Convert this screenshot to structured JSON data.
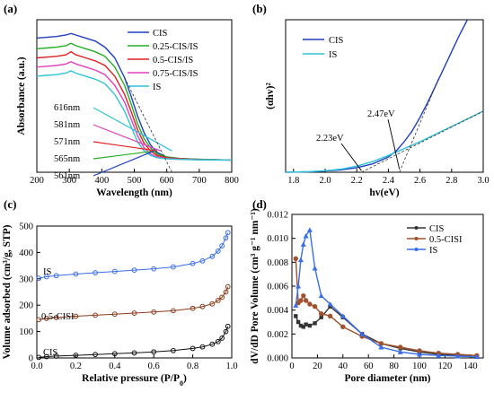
{
  "chart_data": [
    {
      "panel": "(a)",
      "type": "line",
      "xlabel": "Wavelength (nm)",
      "ylabel": "Absorbance (a.u.)",
      "xlim": [
        200,
        800
      ],
      "ylim": [
        0,
        1
      ],
      "xticks": [
        "200",
        "300",
        "400",
        "500",
        "600",
        "700",
        "800"
      ],
      "legend_position": "top-right",
      "series": [
        {
          "name": "CIS",
          "color": "#1f3fbf",
          "x": [
            200,
            230,
            260,
            290,
            305,
            320,
            350,
            380,
            410,
            440,
            470,
            490,
            510,
            530,
            550,
            570,
            600,
            640,
            700,
            800
          ],
          "y": [
            0.88,
            0.885,
            0.89,
            0.9,
            0.91,
            0.9,
            0.88,
            0.86,
            0.82,
            0.75,
            0.62,
            0.5,
            0.37,
            0.26,
            0.18,
            0.13,
            0.1,
            0.09,
            0.085,
            0.08
          ]
        },
        {
          "name": "0.25-CIS/IS",
          "color": "#22b022",
          "x": [
            200,
            230,
            260,
            290,
            305,
            320,
            350,
            380,
            410,
            440,
            470,
            490,
            510,
            530,
            550,
            570,
            600,
            640,
            700,
            800
          ],
          "y": [
            0.81,
            0.815,
            0.82,
            0.83,
            0.845,
            0.83,
            0.81,
            0.79,
            0.76,
            0.69,
            0.57,
            0.45,
            0.32,
            0.22,
            0.16,
            0.12,
            0.1,
            0.09,
            0.085,
            0.08
          ]
        },
        {
          "name": "0.5-CIS/IS",
          "color": "#e02020",
          "x": [
            200,
            230,
            260,
            290,
            305,
            320,
            350,
            380,
            410,
            440,
            470,
            490,
            510,
            530,
            550,
            570,
            600,
            640,
            700,
            800
          ],
          "y": [
            0.75,
            0.755,
            0.76,
            0.77,
            0.79,
            0.77,
            0.75,
            0.73,
            0.7,
            0.63,
            0.51,
            0.4,
            0.28,
            0.19,
            0.14,
            0.11,
            0.095,
            0.088,
            0.083,
            0.08
          ]
        },
        {
          "name": "0.75-CIS/IS",
          "color": "#e040c0",
          "x": [
            200,
            230,
            260,
            290,
            305,
            320,
            350,
            380,
            410,
            440,
            470,
            490,
            510,
            530,
            550,
            570,
            600,
            640,
            700,
            800
          ],
          "y": [
            0.69,
            0.695,
            0.7,
            0.71,
            0.725,
            0.71,
            0.69,
            0.67,
            0.64,
            0.57,
            0.46,
            0.35,
            0.24,
            0.16,
            0.12,
            0.1,
            0.09,
            0.085,
            0.082,
            0.08
          ]
        },
        {
          "name": "IS",
          "color": "#2ec4d8",
          "x": [
            200,
            230,
            260,
            290,
            305,
            320,
            350,
            380,
            410,
            440,
            470,
            490,
            510,
            530,
            550,
            570,
            600,
            640,
            700,
            800
          ],
          "y": [
            0.63,
            0.635,
            0.64,
            0.65,
            0.665,
            0.65,
            0.63,
            0.61,
            0.58,
            0.51,
            0.4,
            0.3,
            0.2,
            0.14,
            0.11,
            0.095,
            0.088,
            0.084,
            0.081,
            0.08
          ]
        }
      ],
      "annotations": [
        "616nm",
        "581nm",
        "571nm",
        "565nm",
        "561nm"
      ]
    },
    {
      "panel": "(b)",
      "type": "line",
      "xlabel": "hv(eV)",
      "ylabel": "(αhv)²",
      "xlim": [
        1.75,
        3.0
      ],
      "ylim": [
        0,
        1
      ],
      "xticks": [
        "1.8",
        "2.0",
        "2.2",
        "2.4",
        "2.6",
        "2.8",
        "3.0"
      ],
      "legend_position": "top-left",
      "series": [
        {
          "name": "CIS",
          "color": "#1f3fbf",
          "x": [
            1.75,
            1.9,
            2.0,
            2.1,
            2.2,
            2.3,
            2.4,
            2.45,
            2.5,
            2.55,
            2.6,
            2.65,
            2.7,
            2.75,
            2.8,
            2.85,
            2.9
          ],
          "y": [
            0.0,
            0.003,
            0.008,
            0.015,
            0.03,
            0.055,
            0.1,
            0.14,
            0.2,
            0.27,
            0.36,
            0.46,
            0.57,
            0.68,
            0.79,
            0.9,
            1.0
          ]
        },
        {
          "name": "IS",
          "color": "#2ec4d8",
          "x": [
            1.75,
            1.9,
            2.0,
            2.1,
            2.2,
            2.3,
            2.4,
            2.5,
            2.6,
            2.7,
            2.8,
            2.9,
            3.0
          ],
          "y": [
            0.0,
            0.004,
            0.01,
            0.02,
            0.04,
            0.07,
            0.11,
            0.155,
            0.2,
            0.25,
            0.3,
            0.35,
            0.4
          ]
        }
      ],
      "annotations": [
        "2.23eV",
        "2.47eV"
      ]
    },
    {
      "panel": "(c)",
      "type": "scatter",
      "xlabel": "Relative pressure (P/P0)",
      "ylabel": "Volume adsorbed (cm³/g, STP)",
      "xlim": [
        0.0,
        1.0
      ],
      "ylim": [
        0,
        500
      ],
      "xticks": [
        "0.0",
        "0.2",
        "0.4",
        "0.6",
        "0.8",
        "1.0"
      ],
      "yticks": [
        "0",
        "100",
        "200",
        "300",
        "400",
        "500"
      ],
      "series": [
        {
          "name": "IS",
          "color": "#3a6de8",
          "x": [
            0.01,
            0.05,
            0.1,
            0.2,
            0.3,
            0.4,
            0.5,
            0.6,
            0.7,
            0.8,
            0.85,
            0.9,
            0.93,
            0.95,
            0.97,
            0.98
          ],
          "y": [
            302,
            308,
            312,
            318,
            323,
            328,
            333,
            338,
            345,
            358,
            368,
            385,
            405,
            425,
            455,
            475
          ]
        },
        {
          "name": "0.5-CISI",
          "color": "#8b3a1a",
          "x": [
            0.01,
            0.05,
            0.1,
            0.2,
            0.3,
            0.4,
            0.5,
            0.6,
            0.7,
            0.8,
            0.85,
            0.9,
            0.93,
            0.95,
            0.97,
            0.98
          ],
          "y": [
            145,
            150,
            153,
            158,
            162,
            166,
            170,
            174,
            179,
            188,
            195,
            205,
            218,
            230,
            250,
            270
          ]
        },
        {
          "name": "CIS",
          "color": "#111111",
          "x": [
            0.01,
            0.05,
            0.1,
            0.2,
            0.3,
            0.4,
            0.5,
            0.6,
            0.7,
            0.8,
            0.85,
            0.9,
            0.93,
            0.95,
            0.97,
            0.98
          ],
          "y": [
            2,
            5,
            7,
            10,
            13,
            16,
            19,
            23,
            28,
            36,
            42,
            52,
            62,
            75,
            100,
            120
          ]
        }
      ]
    },
    {
      "panel": "(d)",
      "type": "line",
      "xlabel": "Pore diameter (nm)",
      "ylabel": "dV/dD Pore Volume (cm³ g⁻¹ nm⁻¹)",
      "xlim": [
        0,
        150
      ],
      "ylim": [
        0,
        0.012
      ],
      "xticks": [
        "0",
        "20",
        "40",
        "60",
        "80",
        "100",
        "120",
        "140"
      ],
      "yticks": [
        "0.000",
        "0.002",
        "0.004",
        "0.006",
        "0.008",
        "0.010",
        "0.012"
      ],
      "legend_position": "top-right",
      "series": [
        {
          "name": "CIS",
          "color": "#333333",
          "x": [
            3,
            5,
            7,
            9,
            11,
            14,
            18,
            23,
            30,
            40,
            55,
            70,
            85,
            100,
            115,
            130,
            145
          ],
          "y": [
            0.0035,
            0.003,
            0.0027,
            0.0026,
            0.0028,
            0.0027,
            0.0029,
            0.0034,
            0.0043,
            0.0034,
            0.002,
            0.0012,
            0.0008,
            0.0005,
            0.0003,
            0.0002,
            0.0001
          ]
        },
        {
          "name": "0.5-CISI",
          "color": "#a0522d",
          "x": [
            3,
            5,
            7,
            9,
            11,
            14,
            18,
            23,
            30,
            40,
            55,
            70,
            85,
            100,
            115,
            130,
            145
          ],
          "y": [
            0.0083,
            0.0046,
            0.0048,
            0.0052,
            0.0048,
            0.0045,
            0.0043,
            0.0037,
            0.0035,
            0.0026,
            0.0018,
            0.0012,
            0.0009,
            0.0006,
            0.0004,
            0.0003,
            0.0002
          ]
        },
        {
          "name": "IS",
          "color": "#3a6de8",
          "x": [
            3,
            5,
            7,
            9,
            11,
            14,
            18,
            23,
            30,
            40,
            55,
            70,
            85,
            100,
            115,
            130,
            145
          ],
          "y": [
            0.0044,
            0.006,
            0.0082,
            0.0095,
            0.0102,
            0.0107,
            0.0075,
            0.0052,
            0.0045,
            0.0035,
            0.002,
            0.0009,
            0.0005,
            0.0003,
            0.0002,
            0.00015,
            0.0001
          ]
        }
      ]
    }
  ]
}
